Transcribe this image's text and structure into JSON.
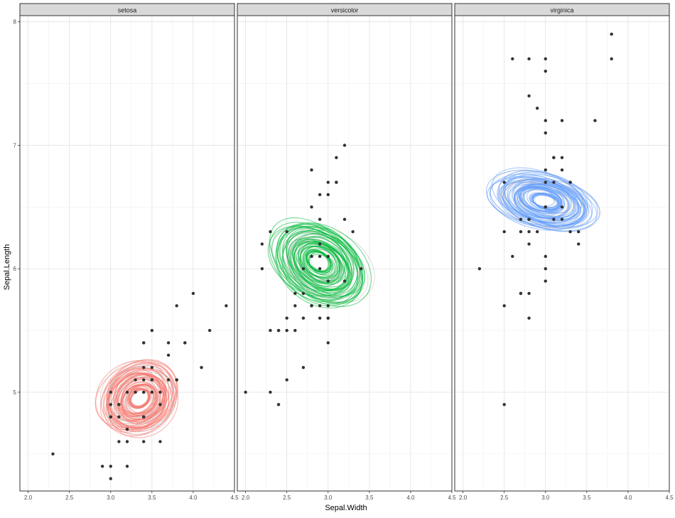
{
  "chart_data": {
    "type": "scatter",
    "xlabel": "Sepal.Width",
    "ylabel": "Sepal.Length",
    "xlim": [
      1.9,
      4.5
    ],
    "ylim": [
      4.2,
      8.05
    ],
    "x_ticks": [
      2.0,
      2.5,
      3.0,
      3.5,
      4.0,
      4.5
    ],
    "x_tick_labels": [
      "2.0",
      "2.5",
      "3.0",
      "3.5",
      "4.0",
      "4.5"
    ],
    "y_ticks": [
      5,
      6,
      7,
      8
    ],
    "y_tick_labels": [
      "5",
      "6",
      "7",
      "8"
    ],
    "grid": true,
    "legend": "none",
    "point_color": "#333333",
    "contour_outline_color": "#bbbbbb",
    "panels": [
      {
        "name": "setosa",
        "color": "#F8766D",
        "density_center": [
          3.35,
          4.95
        ],
        "density_spread": [
          0.45,
          0.42
        ],
        "density_rotation_deg": 35,
        "points": [
          [
            3.5,
            5.1
          ],
          [
            3.0,
            4.9
          ],
          [
            3.2,
            4.7
          ],
          [
            3.1,
            4.6
          ],
          [
            3.6,
            5.0
          ],
          [
            3.9,
            5.4
          ],
          [
            3.4,
            4.6
          ],
          [
            3.4,
            5.0
          ],
          [
            2.9,
            4.4
          ],
          [
            3.1,
            4.9
          ],
          [
            3.7,
            5.4
          ],
          [
            3.4,
            4.8
          ],
          [
            3.0,
            4.8
          ],
          [
            3.0,
            4.3
          ],
          [
            4.0,
            5.8
          ],
          [
            4.4,
            5.7
          ],
          [
            3.9,
            5.4
          ],
          [
            3.5,
            5.1
          ],
          [
            3.8,
            5.7
          ],
          [
            3.8,
            5.1
          ],
          [
            3.4,
            5.4
          ],
          [
            3.7,
            5.1
          ],
          [
            3.6,
            4.6
          ],
          [
            3.3,
            5.1
          ],
          [
            3.4,
            4.8
          ],
          [
            3.0,
            5.0
          ],
          [
            3.4,
            5.0
          ],
          [
            3.5,
            5.2
          ],
          [
            3.4,
            5.2
          ],
          [
            3.2,
            4.7
          ],
          [
            3.1,
            4.8
          ],
          [
            3.4,
            5.4
          ],
          [
            4.1,
            5.2
          ],
          [
            4.2,
            5.5
          ],
          [
            3.1,
            4.9
          ],
          [
            3.2,
            5.0
          ],
          [
            3.5,
            5.5
          ],
          [
            3.6,
            4.9
          ],
          [
            3.0,
            4.4
          ],
          [
            3.4,
            5.1
          ],
          [
            3.5,
            5.0
          ],
          [
            2.3,
            4.5
          ],
          [
            3.2,
            4.4
          ],
          [
            3.5,
            5.0
          ],
          [
            3.8,
            5.1
          ],
          [
            3.0,
            4.8
          ],
          [
            3.8,
            5.1
          ],
          [
            3.2,
            4.6
          ],
          [
            3.7,
            5.3
          ],
          [
            3.3,
            5.0
          ]
        ]
      },
      {
        "name": "versicolor",
        "color": "#00BA38",
        "density_center": [
          2.9,
          6.05
        ],
        "density_spread": [
          0.4,
          0.62
        ],
        "density_rotation_deg": 55,
        "points": [
          [
            3.2,
            7.0
          ],
          [
            3.2,
            6.4
          ],
          [
            3.1,
            6.9
          ],
          [
            2.3,
            5.5
          ],
          [
            2.8,
            6.5
          ],
          [
            2.8,
            5.7
          ],
          [
            3.3,
            6.3
          ],
          [
            2.4,
            4.9
          ],
          [
            2.9,
            6.6
          ],
          [
            2.7,
            5.2
          ],
          [
            2.0,
            5.0
          ],
          [
            3.0,
            5.9
          ],
          [
            2.2,
            6.0
          ],
          [
            2.9,
            6.1
          ],
          [
            2.9,
            5.6
          ],
          [
            3.1,
            6.7
          ],
          [
            3.0,
            5.6
          ],
          [
            2.7,
            5.8
          ],
          [
            2.2,
            6.2
          ],
          [
            2.5,
            5.6
          ],
          [
            3.2,
            5.9
          ],
          [
            2.8,
            6.1
          ],
          [
            2.5,
            6.3
          ],
          [
            2.8,
            6.1
          ],
          [
            2.9,
            6.4
          ],
          [
            3.0,
            6.6
          ],
          [
            2.8,
            6.8
          ],
          [
            3.0,
            6.7
          ],
          [
            2.9,
            6.0
          ],
          [
            2.6,
            5.7
          ],
          [
            2.4,
            5.5
          ],
          [
            2.4,
            5.5
          ],
          [
            2.7,
            5.8
          ],
          [
            2.7,
            6.0
          ],
          [
            3.0,
            5.4
          ],
          [
            3.4,
            6.0
          ],
          [
            3.1,
            6.7
          ],
          [
            2.3,
            6.3
          ],
          [
            3.0,
            5.6
          ],
          [
            2.5,
            5.5
          ],
          [
            2.6,
            5.5
          ],
          [
            3.0,
            6.1
          ],
          [
            2.6,
            5.8
          ],
          [
            2.3,
            5.0
          ],
          [
            2.7,
            5.6
          ],
          [
            3.0,
            5.7
          ],
          [
            2.9,
            5.7
          ],
          [
            2.9,
            6.2
          ],
          [
            2.5,
            5.1
          ],
          [
            2.8,
            5.7
          ]
        ]
      },
      {
        "name": "virginica",
        "color": "#619CFF",
        "density_center": [
          2.98,
          6.55
        ],
        "density_spread": [
          0.3,
          0.62
        ],
        "density_rotation_deg": 75,
        "points": [
          [
            3.3,
            6.3
          ],
          [
            2.7,
            5.8
          ],
          [
            3.0,
            7.1
          ],
          [
            2.9,
            6.3
          ],
          [
            3.0,
            6.5
          ],
          [
            3.0,
            7.6
          ],
          [
            2.5,
            4.9
          ],
          [
            2.9,
            7.3
          ],
          [
            2.5,
            6.7
          ],
          [
            3.6,
            7.2
          ],
          [
            3.2,
            6.5
          ],
          [
            2.7,
            6.4
          ],
          [
            3.0,
            6.8
          ],
          [
            2.5,
            5.7
          ],
          [
            2.8,
            5.8
          ],
          [
            3.2,
            6.4
          ],
          [
            3.0,
            6.5
          ],
          [
            3.8,
            7.7
          ],
          [
            2.6,
            7.7
          ],
          [
            2.2,
            6.0
          ],
          [
            3.2,
            6.9
          ],
          [
            2.8,
            5.6
          ],
          [
            2.8,
            7.7
          ],
          [
            2.7,
            6.3
          ],
          [
            3.3,
            6.7
          ],
          [
            3.2,
            7.2
          ],
          [
            2.8,
            6.2
          ],
          [
            3.0,
            6.1
          ],
          [
            2.8,
            6.4
          ],
          [
            3.0,
            7.2
          ],
          [
            2.8,
            7.4
          ],
          [
            3.8,
            7.9
          ],
          [
            2.8,
            6.4
          ],
          [
            2.8,
            6.3
          ],
          [
            2.6,
            6.1
          ],
          [
            3.0,
            7.7
          ],
          [
            3.4,
            6.3
          ],
          [
            3.1,
            6.4
          ],
          [
            3.0,
            6.0
          ],
          [
            3.1,
            6.9
          ],
          [
            3.1,
            6.7
          ],
          [
            3.1,
            6.9
          ],
          [
            2.7,
            5.8
          ],
          [
            3.2,
            6.8
          ],
          [
            3.3,
            6.7
          ],
          [
            3.0,
            6.7
          ],
          [
            2.5,
            6.3
          ],
          [
            3.0,
            6.5
          ],
          [
            3.4,
            6.2
          ],
          [
            3.0,
            5.9
          ]
        ]
      }
    ]
  }
}
